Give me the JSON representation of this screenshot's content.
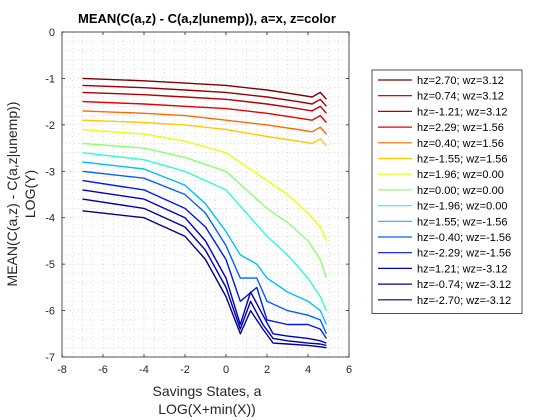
{
  "chart_data": {
    "type": "line",
    "title": "MEAN(C(a,z) - C(a,z|unemp)), a=x, z=color",
    "xlabel": [
      "Savings States, a",
      "LOG(X+min(X))"
    ],
    "ylabel": [
      "MEAN(C(a,z) - C(a,z|unemp))",
      "LOG(Y)"
    ],
    "xlim": [
      -8,
      6
    ],
    "ylim": [
      -7,
      0
    ],
    "xticks": [
      -8,
      -6,
      -4,
      -2,
      0,
      2,
      4,
      6
    ],
    "yticks": [
      0,
      -1,
      -2,
      -3,
      -4,
      -5,
      -6,
      -7
    ],
    "xtick_labels": [
      "-8",
      "-6",
      "-4",
      "-2",
      "0",
      "2",
      "4",
      "6"
    ],
    "ytick_labels": [
      "0",
      "-1",
      "-2",
      "-3",
      "-4",
      "-5",
      "-6",
      "-7"
    ],
    "grid": "dotted minor grid on",
    "legend_placement": "outside right",
    "colormap": "jet",
    "series": [
      {
        "name": "hz=2.70; wz=3.12",
        "color": "#800000",
        "x": [
          -7,
          -4,
          -2,
          0,
          2,
          3.5,
          4.2,
          4.6,
          4.9
        ],
        "y": [
          -1.0,
          -1.05,
          -1.1,
          -1.15,
          -1.25,
          -1.35,
          -1.4,
          -1.3,
          -1.45
        ]
      },
      {
        "name": "hz=0.74; wz=3.12",
        "color": "#9a0000",
        "x": [
          -7,
          -4,
          -2,
          0,
          2,
          3.5,
          4.2,
          4.6,
          4.9
        ],
        "y": [
          -1.15,
          -1.2,
          -1.25,
          -1.3,
          -1.4,
          -1.5,
          -1.55,
          -1.45,
          -1.6
        ]
      },
      {
        "name": "hz=-1.21; wz=3.12",
        "color": "#b40000",
        "x": [
          -7,
          -4,
          -2,
          0,
          2,
          3.5,
          4.2,
          4.6,
          4.9
        ],
        "y": [
          -1.3,
          -1.35,
          -1.4,
          -1.45,
          -1.55,
          -1.65,
          -1.7,
          -1.6,
          -1.75
        ]
      },
      {
        "name": "hz=2.29; wz=1.56",
        "color": "#e60000",
        "x": [
          -7,
          -4,
          -2,
          0,
          2,
          3.5,
          4.2,
          4.6,
          4.9
        ],
        "y": [
          -1.5,
          -1.55,
          -1.6,
          -1.65,
          -1.75,
          -1.85,
          -1.9,
          -1.8,
          -1.95
        ]
      },
      {
        "name": "hz=0.40; wz=1.56",
        "color": "#ff6a00",
        "x": [
          -7,
          -4,
          -2,
          0,
          2,
          3.5,
          4.2,
          4.6,
          4.9
        ],
        "y": [
          -1.7,
          -1.75,
          -1.8,
          -1.9,
          -2.0,
          -2.1,
          -2.15,
          -2.05,
          -2.2
        ]
      },
      {
        "name": "hz=-1.55; wz=1.56",
        "color": "#ffc800",
        "x": [
          -7,
          -4,
          -2,
          0,
          2,
          3.5,
          4.2,
          4.6,
          4.9
        ],
        "y": [
          -1.9,
          -1.95,
          -2.0,
          -2.1,
          -2.25,
          -2.35,
          -2.4,
          -2.3,
          -2.45
        ]
      },
      {
        "name": "hz=1.96; wz=0.00",
        "color": "#eaff0d",
        "x": [
          -7,
          -4,
          -2,
          0,
          1,
          2,
          3,
          4,
          4.6,
          4.9
        ],
        "y": [
          -2.1,
          -2.2,
          -2.35,
          -2.6,
          -2.9,
          -3.2,
          -3.5,
          -3.9,
          -4.2,
          -4.5
        ]
      },
      {
        "name": "hz=0.00; wz=0.00",
        "color": "#8cff70",
        "x": [
          -7,
          -4,
          -2,
          0,
          1,
          2,
          3,
          4,
          4.6,
          4.9
        ],
        "y": [
          -2.4,
          -2.5,
          -2.7,
          -3.0,
          -3.4,
          -3.8,
          -4.1,
          -4.5,
          -4.9,
          -5.3
        ]
      },
      {
        "name": "hz=-1.96; wz=0.00",
        "color": "#2cffd0",
        "x": [
          -7,
          -4,
          -2,
          0,
          1,
          2,
          3,
          4,
          4.6,
          4.9
        ],
        "y": [
          -2.6,
          -2.75,
          -3.0,
          -3.4,
          -3.9,
          -4.4,
          -4.8,
          -5.3,
          -5.7,
          -6.0
        ]
      },
      {
        "name": "hz=1.55; wz=-1.56",
        "color": "#00c0ff",
        "x": [
          -7,
          -4,
          -2,
          -1,
          0,
          0.7,
          1.5,
          2,
          3,
          4,
          4.6,
          4.9
        ],
        "y": [
          -2.8,
          -2.95,
          -3.3,
          -3.7,
          -4.3,
          -4.8,
          -5.0,
          -5.3,
          -5.6,
          -5.8,
          -6.0,
          -6.3
        ]
      },
      {
        "name": "hz=-0.40; wz=-1.56",
        "color": "#0060ff",
        "x": [
          -7,
          -4,
          -2,
          -1,
          0,
          0.7,
          1.5,
          2,
          3,
          4,
          4.6,
          4.9
        ],
        "y": [
          -3.0,
          -3.15,
          -3.5,
          -3.9,
          -4.6,
          -5.3,
          -5.3,
          -5.8,
          -6.0,
          -6.1,
          -6.2,
          -6.5
        ]
      },
      {
        "name": "hz=-2.29; wz=-1.56",
        "color": "#0018e8",
        "x": [
          -7,
          -4,
          -2,
          -1,
          0,
          0.7,
          1.5,
          2,
          3,
          4,
          4.6,
          4.9
        ],
        "y": [
          -3.2,
          -3.4,
          -3.8,
          -4.2,
          -4.9,
          -5.8,
          -5.5,
          -6.2,
          -6.3,
          -6.3,
          -6.4,
          -6.6
        ]
      },
      {
        "name": "hz=1.21; wz=-3.12",
        "color": "#0000c8",
        "x": [
          -7,
          -4,
          -2,
          -1,
          0,
          0.7,
          1.2,
          1.8,
          2.3,
          3,
          4,
          4.6,
          4.9
        ],
        "y": [
          -3.4,
          -3.6,
          -4.0,
          -4.5,
          -5.3,
          -6.3,
          -5.6,
          -6.1,
          -6.5,
          -6.55,
          -6.6,
          -6.65,
          -6.7
        ]
      },
      {
        "name": "hz=-0.74; wz=-3.12",
        "color": "#0000a8",
        "x": [
          -7,
          -4,
          -2,
          -1,
          0,
          0.7,
          1.2,
          1.8,
          2.3,
          3,
          4,
          4.6,
          4.9
        ],
        "y": [
          -3.6,
          -3.8,
          -4.2,
          -4.7,
          -5.5,
          -6.4,
          -5.8,
          -6.3,
          -6.6,
          -6.65,
          -6.7,
          -6.72,
          -6.75
        ]
      },
      {
        "name": "hz=-2.70; wz=-3.12",
        "color": "#00008f",
        "x": [
          -7,
          -4,
          -2,
          -1,
          0,
          0.7,
          1.2,
          1.8,
          2.3,
          3,
          4,
          4.6,
          4.9
        ],
        "y": [
          -3.85,
          -4.0,
          -4.4,
          -4.9,
          -5.7,
          -6.5,
          -6.0,
          -6.4,
          -6.7,
          -6.72,
          -6.75,
          -6.78,
          -6.8
        ]
      }
    ]
  }
}
